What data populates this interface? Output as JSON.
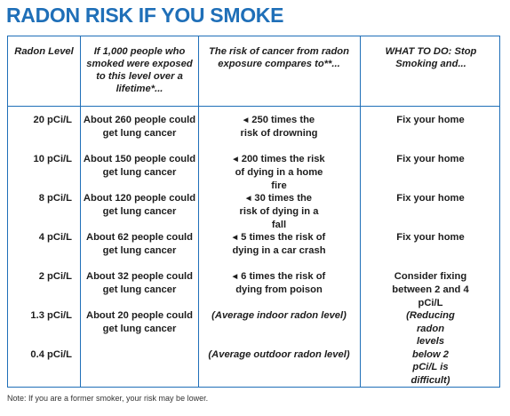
{
  "title": "RADON RISK IF YOU SMOKE",
  "headers": {
    "radon_level": "Radon Level",
    "people": "If 1,000 people who smoked were exposed to this level over a lifetime*...",
    "risk": "The risk of cancer from radon exposure compares to**...",
    "what_to_do": "WHAT TO DO: Stop Smoking and..."
  },
  "rows": [
    {
      "level": "20 pCi/L",
      "people": "About 260 people could get lung cancer",
      "risk": "250 times the risk of drowning",
      "action": "Fix your home"
    },
    {
      "level": "10 pCi/L",
      "people": "About 150 people could get lung cancer",
      "risk": "200 times the risk of dying in a home fire",
      "action": "Fix your home"
    },
    {
      "level": "8 pCi/L",
      "people": "About 120 people could get lung cancer",
      "risk": "30 times the risk of dying in a fall",
      "action": "Fix your home"
    },
    {
      "level": "4 pCi/L",
      "people": "About 62 people could get lung cancer",
      "risk": "5 times the risk of dying in a car crash",
      "action": "Fix your home"
    },
    {
      "level": "2 pCi/L",
      "people": "About 32 people could get lung cancer",
      "risk": "6 times the risk of dying from poison",
      "action": "Consider fixing between 2 and 4 pCi/L"
    },
    {
      "level": "1.3 pCi/L",
      "people": "About 20 people could get lung cancer",
      "risk": "(Average indoor radon level)",
      "action": "(Reducing radon levels below 2 pCi/L is difficult)"
    },
    {
      "level": "0.4 pCi/L",
      "people": "",
      "risk": "(Average outdoor radon level)",
      "action": ""
    }
  ],
  "note": "Note: If you are a former smoker, your risk may be lower.",
  "colors": {
    "accent": "#1f6fb8"
  }
}
